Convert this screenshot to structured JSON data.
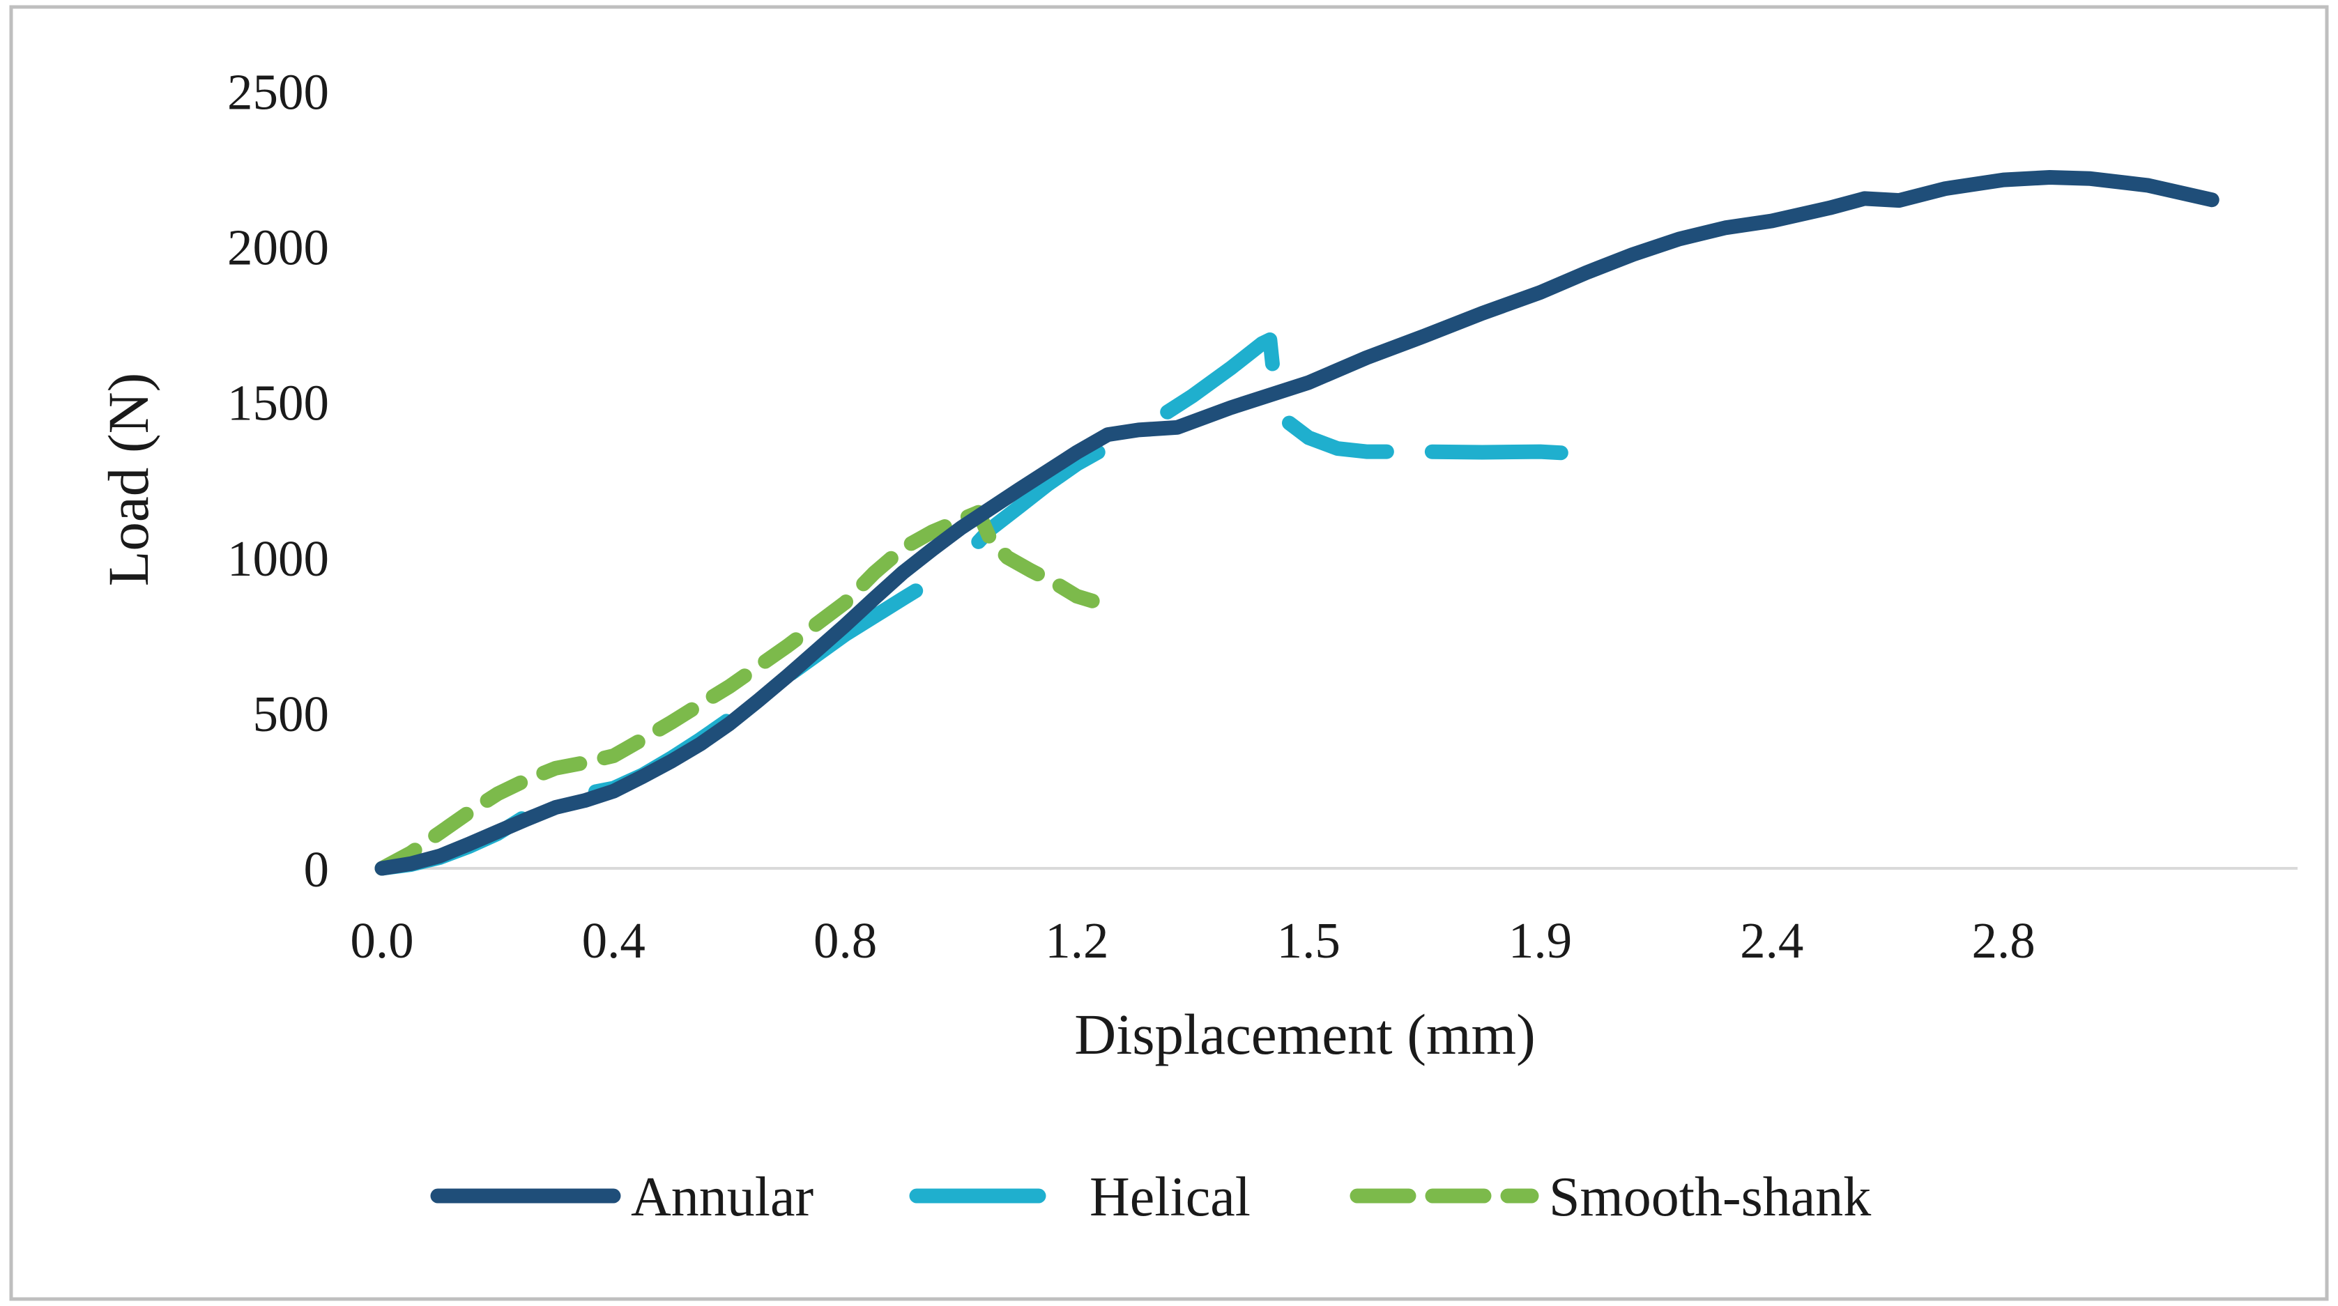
{
  "figure": {
    "background_color": "#ffffff",
    "border_color": "#bfbfbf",
    "text_color": "#1a1a1a",
    "baseline_color": "#d9d9d9"
  },
  "chart_data": {
    "type": "line",
    "title": "",
    "xlabel": "Displacement (mm)",
    "ylabel": "Load (N)",
    "x_tick_labels": [
      "0.0",
      "0.4",
      "0.8",
      "1.2",
      "1.5",
      "1.9",
      "2.4",
      "2.8"
    ],
    "x_tick_values": [
      0.0,
      0.4,
      0.8,
      1.2,
      1.5,
      1.9,
      2.4,
      2.8
    ],
    "y_ticks": [
      "0",
      "500",
      "1000",
      "1500",
      "2000",
      "2500"
    ],
    "y_tick_values": [
      0,
      500,
      1000,
      1500,
      2000,
      2500
    ],
    "ylim": [
      0,
      2500
    ],
    "grid": false,
    "legend_position": "bottom",
    "series": [
      {
        "name": "Annular",
        "color": "#1f4e79",
        "line_style": "solid",
        "segments": [
          [
            [
              0,
              0
            ],
            [
              0.05,
              15
            ],
            [
              0.1,
              40
            ],
            [
              0.15,
              78
            ],
            [
              0.2,
              118
            ],
            [
              0.25,
              158
            ],
            [
              0.3,
              196
            ],
            [
              0.35,
              218
            ],
            [
              0.4,
              248
            ],
            [
              0.45,
              295
            ],
            [
              0.5,
              345
            ],
            [
              0.55,
              400
            ],
            [
              0.6,
              465
            ],
            [
              0.65,
              540
            ],
            [
              0.7,
              618
            ],
            [
              0.75,
              700
            ],
            [
              0.8,
              782
            ],
            [
              0.85,
              868
            ],
            [
              0.9,
              952
            ],
            [
              0.95,
              1025
            ],
            [
              1.0,
              1095
            ],
            [
              1.1,
              1218
            ],
            [
              1.2,
              1338
            ],
            [
              1.24,
              1395
            ],
            [
              1.28,
              1410
            ],
            [
              1.33,
              1418
            ],
            [
              1.4,
              1482
            ],
            [
              1.5,
              1562
            ],
            [
              1.6,
              1642
            ],
            [
              1.7,
              1712
            ],
            [
              1.8,
              1785
            ],
            [
              1.9,
              1852
            ],
            [
              2.0,
              1916
            ],
            [
              2.1,
              1974
            ],
            [
              2.2,
              2024
            ],
            [
              2.3,
              2060
            ],
            [
              2.4,
              2082
            ],
            [
              2.5,
              2124
            ],
            [
              2.56,
              2154
            ],
            [
              2.62,
              2148
            ],
            [
              2.7,
              2186
            ],
            [
              2.8,
              2214
            ],
            [
              2.88,
              2222
            ],
            [
              2.95,
              2218
            ],
            [
              3.05,
              2196
            ],
            [
              3.16,
              2150
            ]
          ]
        ]
      },
      {
        "name": "Helical",
        "color": "#1fafce",
        "line_style": "solid",
        "segments": [
          [
            [
              0,
              0
            ],
            [
              0.05,
              12
            ],
            [
              0.1,
              35
            ],
            [
              0.15,
              70
            ],
            [
              0.2,
              112
            ],
            [
              0.25,
              170
            ],
            [
              0.3,
              226
            ],
            [
              0.35,
              240
            ],
            [
              0.4,
              258
            ],
            [
              0.45,
              300
            ],
            [
              0.5,
              355
            ],
            [
              0.55,
              415
            ],
            [
              0.6,
              480
            ],
            [
              0.65,
              545
            ],
            [
              0.7,
              618
            ],
            [
              0.75,
              685
            ],
            [
              0.8,
              752
            ],
            [
              0.85,
              810
            ],
            [
              0.9,
              868
            ],
            [
              0.95,
              925
            ],
            [
              1.0,
              990
            ],
            [
              1.05,
              1090
            ],
            [
              1.1,
              1162
            ],
            [
              1.15,
              1235
            ],
            [
              1.2,
              1300
            ],
            [
              1.25,
              1370
            ],
            [
              1.3,
              1440
            ],
            [
              1.35,
              1520
            ],
            [
              1.4,
              1610
            ],
            [
              1.44,
              1688
            ],
            [
              1.45,
              1700
            ],
            [
              1.455,
              1580
            ]
          ],
          [
            [
              1.475,
              1432
            ],
            [
              1.5,
              1385
            ],
            [
              1.55,
              1350
            ],
            [
              1.6,
              1340
            ],
            [
              1.7,
              1340
            ],
            [
              1.8,
              1338
            ],
            [
              1.9,
              1340
            ],
            [
              1.95,
              1336
            ],
            [
              2.05,
              1330
            ]
          ]
        ]
      },
      {
        "name": "Smooth-shank",
        "color": "#7cba4b",
        "line_style": "dashed",
        "segments": [
          [
            [
              0,
              0
            ],
            [
              0.05,
              50
            ],
            [
              0.1,
              115
            ],
            [
              0.15,
              180
            ],
            [
              0.2,
              240
            ],
            [
              0.25,
              285
            ],
            [
              0.3,
              322
            ],
            [
              0.35,
              340
            ],
            [
              0.4,
              362
            ],
            [
              0.45,
              415
            ],
            [
              0.5,
              470
            ],
            [
              0.55,
              528
            ],
            [
              0.6,
              585
            ],
            [
              0.65,
              650
            ],
            [
              0.7,
              715
            ],
            [
              0.75,
              785
            ],
            [
              0.8,
              855
            ],
            [
              0.85,
              950
            ],
            [
              0.9,
              1030
            ],
            [
              0.95,
              1082
            ],
            [
              1.0,
              1122
            ],
            [
              1.03,
              1145
            ],
            [
              1.05,
              1060
            ],
            [
              1.08,
              1000
            ],
            [
              1.12,
              958
            ],
            [
              1.16,
              920
            ],
            [
              1.2,
              875
            ],
            [
              1.22,
              860
            ]
          ]
        ]
      }
    ]
  }
}
